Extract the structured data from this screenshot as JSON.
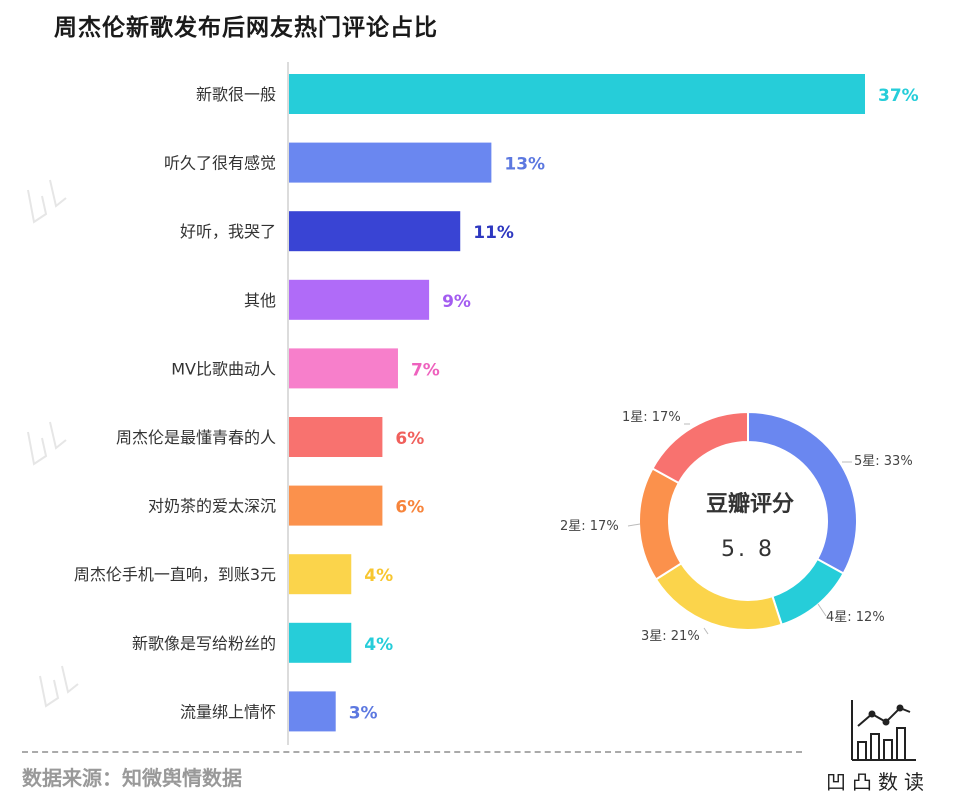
{
  "title": "周杰伦新歌发布后网友热门评论占比",
  "source": "数据来源：知微舆情数据",
  "brand": {
    "name": "凹凸数读"
  },
  "chart_data": [
    {
      "type": "bar",
      "orientation": "horizontal",
      "title": "周杰伦新歌发布后网友热门评论占比",
      "categories": [
        "新歌很一般",
        "听久了很有感觉",
        "好听，我哭了",
        "其他",
        "MV比歌曲动人",
        "周杰伦是最懂青春的人",
        "对奶茶的爱太深沉",
        "周杰伦手机一直响，到账3元",
        "新歌像是写给粉丝的",
        "流量绑上情怀"
      ],
      "values": [
        37,
        13,
        11,
        9,
        7,
        6,
        6,
        4,
        4,
        3
      ],
      "value_labels": [
        "37%",
        "13%",
        "11%",
        "9%",
        "7%",
        "6%",
        "6%",
        "4%",
        "4%",
        "3%"
      ],
      "colors": [
        "#26CDD9",
        "#6A87F0",
        "#3944D4",
        "#B06BF8",
        "#F77FCB",
        "#F8726F",
        "#FB914C",
        "#FBD44B",
        "#26CDD9",
        "#6A87F0"
      ],
      "label_colors": [
        "#26CDD9",
        "#5C78E0",
        "#2E38C0",
        "#A35CF0",
        "#EE62BE",
        "#F0605C",
        "#F7843B",
        "#F7C630",
        "#26CDD9",
        "#5C78E0"
      ],
      "xlim": [
        0,
        37
      ]
    },
    {
      "type": "pie",
      "style": "donut",
      "center_title": "豆瓣评分",
      "center_value": "5. 8",
      "labels": [
        "5星",
        "4星",
        "3星",
        "2星",
        "1星"
      ],
      "values": [
        33,
        12,
        21,
        17,
        17
      ],
      "slice_labels": [
        "5星: 33%",
        "4星: 12%",
        "3星: 21%",
        "2星: 17%",
        "1星: 17%"
      ],
      "colors": [
        "#6A87F0",
        "#26CDD9",
        "#FBD44B",
        "#FB914C",
        "#F8726F"
      ]
    }
  ]
}
